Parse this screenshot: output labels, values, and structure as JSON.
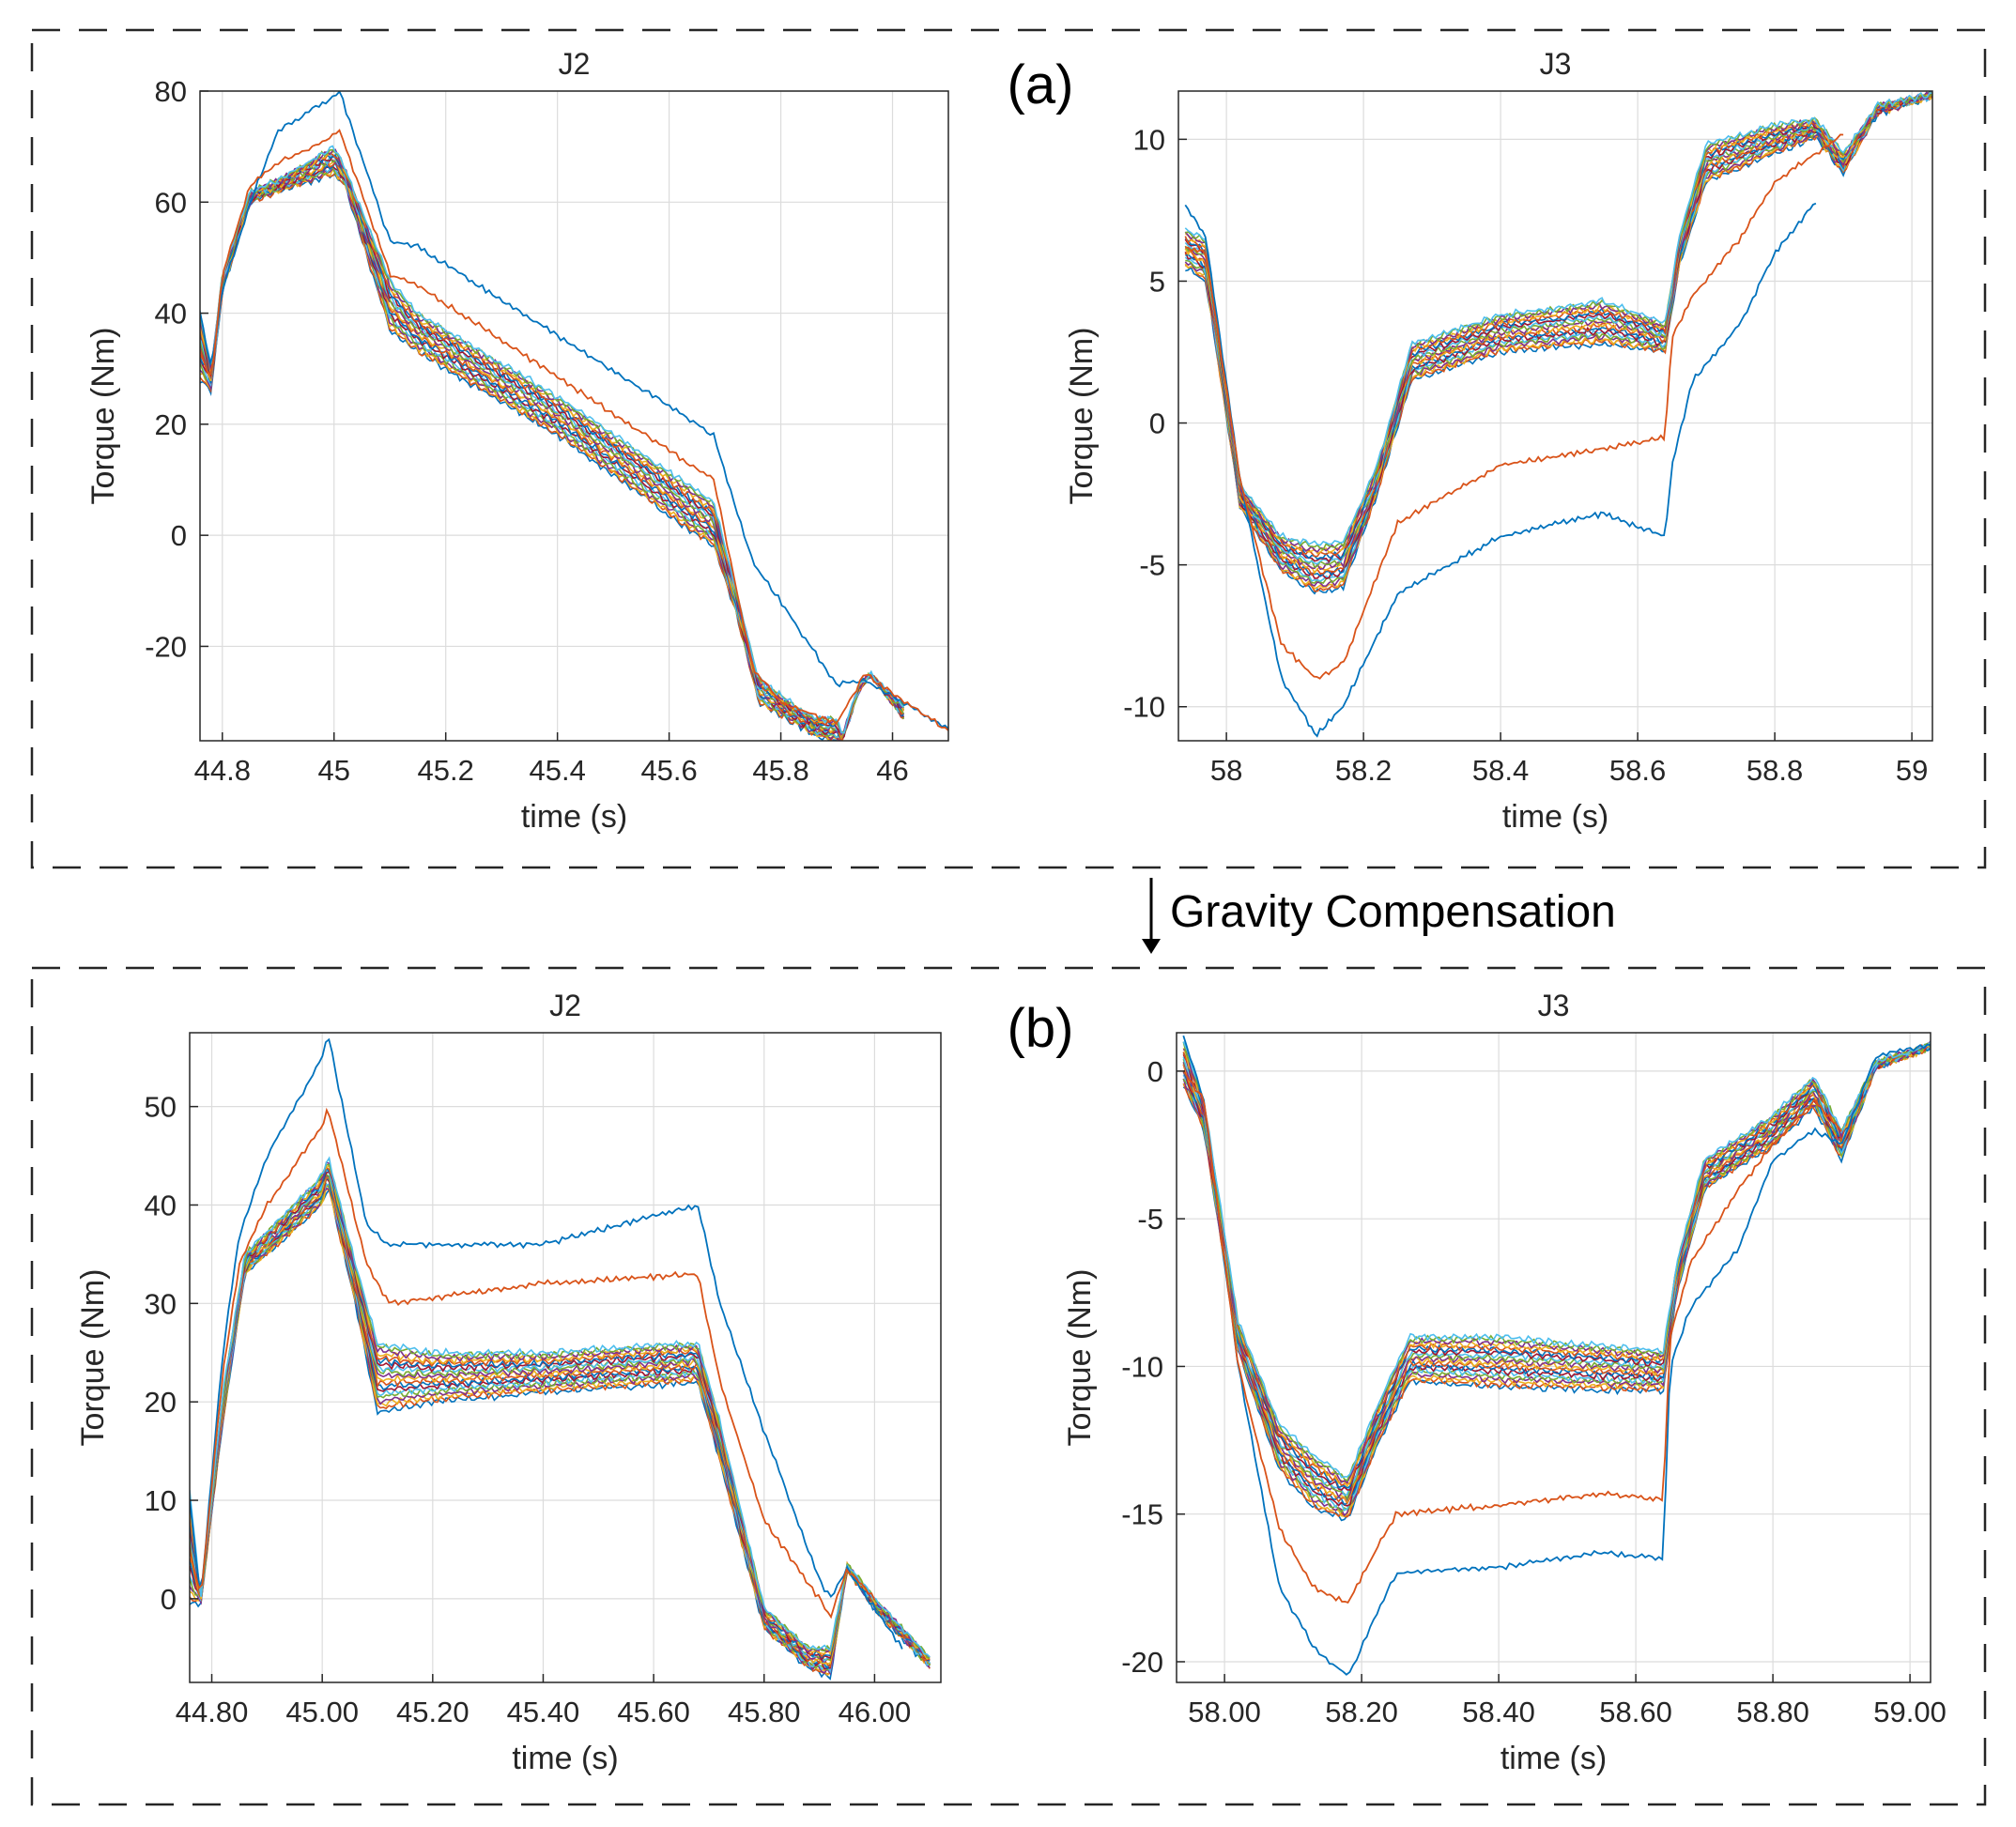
{
  "figure": {
    "panel_labels": [
      "(a)",
      "(b)"
    ],
    "annotation": "Gravity Compensation",
    "series_colors": [
      "#0072BD",
      "#D95319",
      "#EDB120",
      "#7E2F8E",
      "#77AC30",
      "#4DBEEE",
      "#A2142F"
    ]
  },
  "chart_data": [
    {
      "type": "line",
      "panel": "(a)",
      "title": "J2",
      "xlabel": "time (s)",
      "ylabel": "Torque (Nm)",
      "xlim": [
        44.76,
        46.1
      ],
      "ylim": [
        -37,
        80
      ],
      "xticks": [
        44.8,
        45.0,
        45.2,
        45.4,
        45.6,
        45.8,
        46.0
      ],
      "xtick_labels": [
        "44.8",
        "45",
        "45.2",
        "45.4",
        "45.6",
        "45.8",
        "46"
      ],
      "yticks": [
        80,
        60,
        40,
        20,
        0,
        -20
      ],
      "ytick_labels": [
        "80",
        "60",
        "40",
        "20",
        "0",
        "-20"
      ],
      "grid": true,
      "n_series": 20,
      "series": [
        {
          "x": [
            44.76,
            44.78,
            44.8,
            44.85,
            44.9,
            45.0,
            45.01,
            45.1,
            45.15,
            45.65,
            45.68,
            45.75,
            45.8,
            45.9,
            45.95,
            46.05,
            46.1
          ],
          "y": [
            40,
            30,
            44,
            60,
            73,
            79,
            80,
            53,
            52,
            20,
            18,
            -5,
            -12,
            -27,
            -26,
            -32,
            -35
          ]
        },
        {
          "x": [
            44.76,
            44.78,
            44.8,
            44.85,
            44.9,
            45.0,
            45.01,
            45.1,
            45.15,
            45.65,
            45.68,
            45.75,
            45.8,
            45.9,
            45.95,
            46.05,
            46.1
          ],
          "y": [
            33,
            28,
            47,
            63,
            67,
            72,
            73,
            47,
            45,
            12,
            10,
            -24,
            -30,
            -34,
            -25,
            -32,
            -35
          ]
        }
      ],
      "band_x": [
        44.76,
        44.78,
        44.8,
        44.85,
        44.9,
        45.0,
        45.02,
        45.1,
        45.15,
        45.4,
        45.65,
        45.68,
        45.72,
        45.76,
        45.86,
        45.9,
        45.91,
        45.94,
        45.96,
        46.02
      ],
      "band_upper": [
        40,
        30,
        47,
        62,
        64,
        70,
        66,
        46,
        40,
        25,
        8,
        6,
        -10,
        -26,
        -33,
        -33,
        -36,
        -27,
        -25,
        -31
      ],
      "band_lower": [
        28,
        26,
        44,
        60,
        62,
        65,
        63,
        37,
        33,
        18,
        0,
        -2,
        -14,
        -30,
        -36,
        -37,
        -37,
        -28,
        -25,
        -33
      ]
    },
    {
      "type": "line",
      "panel": "(a)",
      "title": "J3",
      "xlabel": "time (s)",
      "ylabel": "Torque (Nm)",
      "xlim": [
        57.93,
        59.03
      ],
      "ylim": [
        -11.2,
        11.7
      ],
      "xticks": [
        58.0,
        58.2,
        58.4,
        58.6,
        58.8,
        59.0
      ],
      "xtick_labels": [
        "58",
        "58.2",
        "58.4",
        "58.6",
        "58.8",
        "59"
      ],
      "yticks": [
        10,
        5,
        0,
        -5,
        -10
      ],
      "ytick_labels": [
        "10",
        "5",
        "0",
        "-5",
        "-10"
      ],
      "grid": true,
      "n_series": 20,
      "series": [
        {
          "x": [
            57.94,
            57.97,
            58.02,
            58.08,
            58.13,
            58.17,
            58.25,
            58.4,
            58.55,
            58.64,
            58.65,
            58.68,
            58.75,
            58.8,
            58.86
          ],
          "y": [
            7.7,
            6.5,
            -2,
            -9,
            -11,
            -10,
            -6,
            -4,
            -3.2,
            -4,
            -1.5,
            1.5,
            3.5,
            6,
            7.8
          ]
        },
        {
          "x": [
            57.94,
            57.97,
            58.02,
            58.08,
            58.13,
            58.17,
            58.25,
            58.4,
            58.55,
            58.64,
            58.65,
            58.68,
            58.75,
            58.8,
            58.86,
            58.9
          ],
          "y": [
            6.2,
            6,
            -2,
            -7.8,
            -9,
            -8.5,
            -3.5,
            -1.5,
            -0.9,
            -0.5,
            3,
            4.5,
            6.5,
            8.5,
            9.5,
            10.2
          ]
        }
      ],
      "band_x": [
        57.94,
        57.97,
        58.02,
        58.08,
        58.13,
        58.17,
        58.22,
        58.27,
        58.4,
        58.55,
        58.64,
        58.66,
        58.7,
        58.8,
        58.86,
        58.9,
        58.95,
        59.03
      ],
      "band_upper": [
        6.8,
        6.5,
        -2.2,
        -4,
        -4.3,
        -4.2,
        -1.5,
        2.8,
        3.8,
        4.3,
        3.5,
        6.5,
        9.8,
        10.5,
        10.7,
        9.5,
        11.2,
        11.6
      ],
      "band_lower": [
        5.5,
        5.0,
        -3.0,
        -5.2,
        -6.0,
        -5.8,
        -2.5,
        1.5,
        2.5,
        2.8,
        2.5,
        5.5,
        8.5,
        9.5,
        10.1,
        8.8,
        10.9,
        11.5
      ]
    },
    {
      "type": "line",
      "panel": "(b)",
      "title": "J2",
      "xlabel": "time (s)",
      "ylabel": "Torque (Nm)",
      "xlim": [
        44.76,
        46.12
      ],
      "ylim": [
        -8.5,
        57.5
      ],
      "xticks": [
        44.8,
        45.0,
        45.2,
        45.4,
        45.6,
        45.8,
        46.0
      ],
      "xtick_labels": [
        "44.80",
        "45.00",
        "45.20",
        "45.40",
        "45.60",
        "45.80",
        "46.00"
      ],
      "yticks": [
        50,
        40,
        30,
        20,
        10,
        0
      ],
      "ytick_labels": [
        "50",
        "40",
        "30",
        "20",
        "10",
        "0"
      ],
      "grid": true,
      "n_series": 20,
      "series": [
        {
          "x": [
            44.76,
            44.78,
            44.82,
            44.85,
            44.9,
            45.0,
            45.01,
            45.08,
            45.12,
            45.4,
            45.68,
            45.72,
            45.8,
            45.9,
            45.92,
            45.95,
            46.05
          ],
          "y": [
            10,
            0,
            25,
            37,
            45,
            55,
            57.5,
            38,
            36,
            36,
            40,
            30,
            17,
            2,
            0,
            3,
            -5
          ]
        },
        {
          "x": [
            44.76,
            44.78,
            44.82,
            44.85,
            44.9,
            45.0,
            45.01,
            45.08,
            45.12,
            45.4,
            45.68,
            45.72,
            45.8,
            45.9,
            45.92,
            45.95,
            46.0
          ],
          "y": [
            5,
            0,
            23,
            34,
            40,
            48,
            50,
            34,
            30,
            32,
            33,
            22,
            8,
            0,
            -2,
            3,
            0
          ]
        }
      ],
      "band_x": [
        44.76,
        44.78,
        44.82,
        44.86,
        45.0,
        45.01,
        45.06,
        45.1,
        45.2,
        45.4,
        45.68,
        45.72,
        45.8,
        45.88,
        45.92,
        45.95,
        46.0,
        46.1
      ],
      "band_upper": [
        11,
        0,
        21,
        35,
        43,
        45,
        34,
        26,
        25,
        25,
        26,
        18,
        -1,
        -5,
        -5,
        3.5,
        0,
        -6
      ],
      "band_lower": [
        -0.5,
        -0.5,
        18,
        33,
        40,
        42,
        30,
        19,
        20,
        21,
        22,
        14,
        -3,
        -7,
        -8,
        3,
        -1,
        -7
      ]
    },
    {
      "type": "line",
      "panel": "(b)",
      "title": "J3",
      "xlabel": "time (s)",
      "ylabel": "Torque (Nm)",
      "xlim": [
        57.93,
        59.03
      ],
      "ylim": [
        -20.7,
        1.3
      ],
      "xticks": [
        58.0,
        58.2,
        58.4,
        58.6,
        58.8,
        59.0
      ],
      "xtick_labels": [
        "58.00",
        "58.20",
        "58.40",
        "58.60",
        "58.80",
        "59.00"
      ],
      "yticks": [
        0,
        -5,
        -10,
        -15,
        -20
      ],
      "ytick_labels": [
        "0",
        "-5",
        "-10",
        "-15",
        "-20"
      ],
      "grid": true,
      "n_series": 20,
      "series": [
        {
          "x": [
            57.94,
            57.97,
            58.02,
            58.08,
            58.13,
            58.18,
            58.25,
            58.4,
            58.55,
            58.64,
            58.65,
            58.68,
            58.75,
            58.8,
            58.86,
            58.9,
            58.95,
            59.03
          ],
          "y": [
            1.2,
            -1,
            -10,
            -17.5,
            -19.5,
            -20.5,
            -17,
            -16.8,
            -16.3,
            -16.5,
            -10,
            -8,
            -6,
            -3,
            -2,
            -2.5,
            0.5,
            0.9
          ]
        },
        {
          "x": [
            57.94,
            57.97,
            58.02,
            58.08,
            58.13,
            58.18,
            58.25,
            58.4,
            58.55,
            58.64,
            58.65,
            58.68,
            58.75,
            58.8,
            58.86,
            58.9
          ],
          "y": [
            0,
            -1,
            -10,
            -15.5,
            -17.5,
            -18,
            -15,
            -14.7,
            -14.3,
            -14.5,
            -9,
            -6.5,
            -4,
            -2.5,
            -1,
            -2
          ]
        }
      ],
      "band_x": [
        57.94,
        57.97,
        58.02,
        58.08,
        58.13,
        58.18,
        58.22,
        58.27,
        58.4,
        58.55,
        58.64,
        58.66,
        58.7,
        58.8,
        58.86,
        58.9,
        58.95,
        59.03
      ],
      "band_upper": [
        1.0,
        -1,
        -8.5,
        -12,
        -13,
        -13.8,
        -11.5,
        -9,
        -9,
        -9.3,
        -9.5,
        -6.5,
        -3,
        -1.5,
        -0.2,
        -2,
        0.3,
        0.9
      ],
      "band_lower": [
        -0.5,
        -2,
        -9.5,
        -13.5,
        -14.8,
        -15.2,
        -12.8,
        -10.5,
        -10.7,
        -10.8,
        -10.8,
        -7.5,
        -4,
        -2.5,
        -1.2,
        -3,
        0.1,
        0.8
      ]
    }
  ]
}
